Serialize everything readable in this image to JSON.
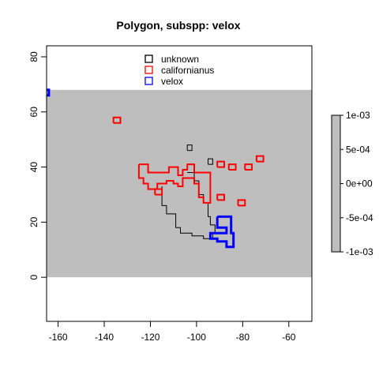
{
  "chart_data": {
    "type": "map",
    "title": "Polygon, subspp: velox",
    "xlabel": "",
    "ylabel": "",
    "xlim": [
      -165,
      -50
    ],
    "ylim": [
      -16,
      84
    ],
    "x_ticks": [
      -160,
      -140,
      -120,
      -100,
      -80,
      -60
    ],
    "y_ticks": [
      0,
      20,
      40,
      60,
      80
    ],
    "raster": {
      "xmin": -165,
      "xmax": -50,
      "ymin": 0,
      "ymax": 68,
      "color": "#bebebe"
    },
    "legend": {
      "placement": "top-center",
      "entries": [
        {
          "label": "unknown",
          "color": "#000000"
        },
        {
          "label": "californianus",
          "color": "#ff0000"
        },
        {
          "label": "velox",
          "color": "#0000ff"
        }
      ]
    },
    "colorbar": {
      "labels": [
        "1e-03",
        "5e-04",
        "0e+00",
        "-5e-04",
        "-1e-03"
      ],
      "values": [
        0.001,
        0.0005,
        0,
        -0.0005,
        -0.001
      ],
      "range": [
        -0.001,
        0.001
      ],
      "color": "#bebebe"
    },
    "series": [
      {
        "name": "unknown",
        "color": "#000000",
        "stroke": 1,
        "polygons": [
          [
            [
              -115,
              33
            ],
            [
              -115,
              26
            ],
            [
              -113,
              26
            ],
            [
              -113,
              23
            ],
            [
              -109,
              23
            ],
            [
              -109,
              18
            ],
            [
              -107,
              18
            ],
            [
              -107,
              16
            ],
            [
              -102,
              16
            ],
            [
              -102,
              15
            ],
            [
              -97,
              15
            ],
            [
              -97,
              14
            ],
            [
              -93,
              14
            ],
            [
              -93,
              16
            ],
            [
              -92,
              16
            ],
            [
              -92,
              19
            ],
            [
              -94,
              19
            ],
            [
              -94,
              22
            ],
            [
              -95,
              22
            ],
            [
              -95,
              27
            ],
            [
              -97,
              27
            ],
            [
              -97,
              30
            ],
            [
              -99,
              30
            ],
            [
              -99,
              35
            ],
            [
              -101,
              35
            ],
            [
              -101,
              38
            ],
            [
              -104,
              38
            ]
          ],
          [
            [
              -104,
              46
            ],
            [
              -102,
              46
            ],
            [
              -102,
              48
            ],
            [
              -104,
              48
            ],
            [
              -104,
              46
            ]
          ],
          [
            [
              -95,
              41
            ],
            [
              -93,
              41
            ],
            [
              -93,
              43
            ],
            [
              -95,
              43
            ],
            [
              -95,
              41
            ]
          ]
        ]
      },
      {
        "name": "californianus",
        "color": "#ff0000",
        "stroke": 2,
        "polygons": [
          [
            [
              -125,
              41
            ],
            [
              -121,
              41
            ],
            [
              -121,
              38
            ],
            [
              -112,
              38
            ],
            [
              -112,
              40
            ],
            [
              -108,
              40
            ],
            [
              -108,
              37
            ],
            [
              -106,
              37
            ],
            [
              -106,
              39
            ],
            [
              -104,
              39
            ],
            [
              -104,
              41
            ],
            [
              -101,
              41
            ],
            [
              -101,
              38
            ],
            [
              -94,
              38
            ],
            [
              -94,
              27
            ],
            [
              -97,
              27
            ],
            [
              -97,
              29
            ],
            [
              -99,
              29
            ],
            [
              -99,
              34
            ],
            [
              -101,
              34
            ],
            [
              -101,
              36
            ],
            [
              -106,
              36
            ],
            [
              -106,
              33
            ],
            [
              -108,
              33
            ],
            [
              -108,
              34
            ],
            [
              -110,
              34
            ],
            [
              -110,
              35
            ],
            [
              -113,
              35
            ],
            [
              -113,
              34
            ],
            [
              -117,
              34
            ],
            [
              -117,
              32
            ],
            [
              -121,
              32
            ],
            [
              -121,
              34
            ],
            [
              -123,
              34
            ],
            [
              -123,
              36
            ],
            [
              -125,
              36
            ],
            [
              -125,
              41
            ]
          ],
          [
            [
              -136,
              56
            ],
            [
              -133,
              56
            ],
            [
              -133,
              58
            ],
            [
              -136,
              58
            ],
            [
              -136,
              56
            ]
          ],
          [
            [
              -118,
              30
            ],
            [
              -115,
              30
            ],
            [
              -115,
              32
            ],
            [
              -118,
              32
            ],
            [
              -118,
              30
            ]
          ],
          [
            [
              -91,
              40
            ],
            [
              -88,
              40
            ],
            [
              -88,
              42
            ],
            [
              -91,
              42
            ],
            [
              -91,
              40
            ]
          ],
          [
            [
              -86,
              39
            ],
            [
              -83,
              39
            ],
            [
              -83,
              41
            ],
            [
              -86,
              41
            ],
            [
              -86,
              39
            ]
          ],
          [
            [
              -79,
              39
            ],
            [
              -76,
              39
            ],
            [
              -76,
              41
            ],
            [
              -79,
              41
            ],
            [
              -79,
              39
            ]
          ],
          [
            [
              -74,
              42
            ],
            [
              -71,
              42
            ],
            [
              -71,
              44
            ],
            [
              -74,
              44
            ],
            [
              -74,
              42
            ]
          ],
          [
            [
              -91,
              28
            ],
            [
              -88,
              28
            ],
            [
              -88,
              30
            ],
            [
              -91,
              30
            ],
            [
              -91,
              28
            ]
          ],
          [
            [
              -82,
              26
            ],
            [
              -79,
              26
            ],
            [
              -79,
              28
            ],
            [
              -82,
              28
            ],
            [
              -82,
              26
            ]
          ]
        ]
      },
      {
        "name": "velox",
        "color": "#0000ff",
        "stroke": 3,
        "polygons": [
          [
            [
              -91,
              22
            ],
            [
              -85,
              22
            ],
            [
              -85,
              16
            ],
            [
              -84,
              16
            ],
            [
              -84,
              11
            ],
            [
              -87,
              11
            ],
            [
              -87,
              13
            ],
            [
              -91,
              13
            ],
            [
              -91,
              14
            ],
            [
              -94,
              14
            ],
            [
              -94,
              16
            ],
            [
              -87,
              16
            ],
            [
              -87,
              18
            ],
            [
              -91,
              18
            ],
            [
              -91,
              22
            ]
          ],
          [
            [
              -166,
              66
            ],
            [
              -164,
              66
            ],
            [
              -164,
              68
            ],
            [
              -166,
              68
            ],
            [
              -166,
              66
            ]
          ]
        ]
      }
    ]
  }
}
